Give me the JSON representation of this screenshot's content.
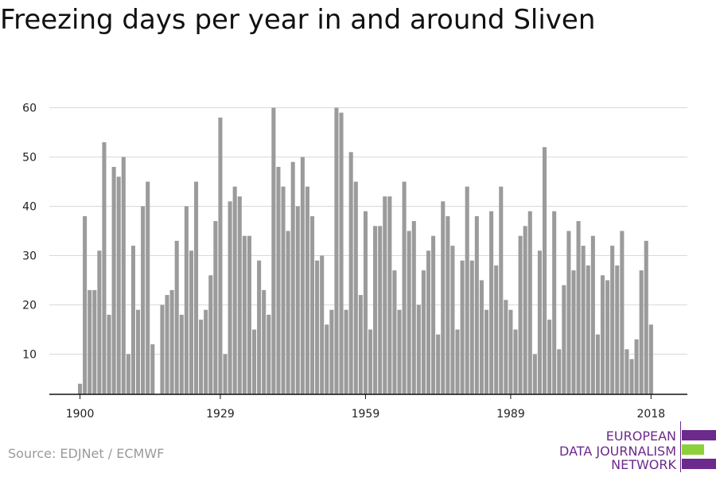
{
  "title": "Freezing days per year in and around Sliven",
  "source": "Source: EDJNet / ECMWF",
  "logo": {
    "line1": "EUROPEAN",
    "line2": "DATA JOURNALISM",
    "line3": "NETWORK"
  },
  "colors": {
    "bar": "#9b9b9b",
    "grid": "#d9d9d9",
    "logo_purple": "#6b2a8c",
    "logo_green": "#8cd13a"
  },
  "chart_data": {
    "type": "bar",
    "title": "Freezing days per year in and around Sliven",
    "xlabel": "",
    "ylabel": "",
    "x_start": 1900,
    "x_end": 2018,
    "xticks": [
      1900,
      1929,
      1959,
      1989,
      2018
    ],
    "yticks": [
      10,
      20,
      30,
      40,
      50,
      60
    ],
    "ylim": [
      3,
      60
    ],
    "grid": true,
    "values": [
      4,
      38,
      23,
      23,
      31,
      53,
      18,
      48,
      46,
      50,
      10,
      32,
      19,
      40,
      45,
      12,
      null,
      20,
      22,
      23,
      33,
      18,
      40,
      31,
      45,
      17,
      19,
      26,
      37,
      58,
      10,
      41,
      44,
      42,
      34,
      34,
      15,
      29,
      23,
      18,
      60,
      48,
      44,
      35,
      49,
      40,
      50,
      44,
      38,
      29,
      30,
      16,
      19,
      60,
      59,
      19,
      51,
      45,
      22,
      39,
      15,
      36,
      36,
      42,
      42,
      27,
      19,
      45,
      35,
      37,
      20,
      27,
      31,
      34,
      14,
      41,
      38,
      32,
      15,
      29,
      44,
      29,
      38,
      25,
      19,
      39,
      28,
      44,
      21,
      19,
      15,
      34,
      36,
      39,
      10,
      31,
      52,
      17,
      39,
      11,
      24,
      35,
      27,
      37,
      32,
      28,
      34,
      14,
      26,
      25,
      32,
      28,
      35,
      11,
      9,
      13,
      27,
      33,
      16
    ]
  }
}
